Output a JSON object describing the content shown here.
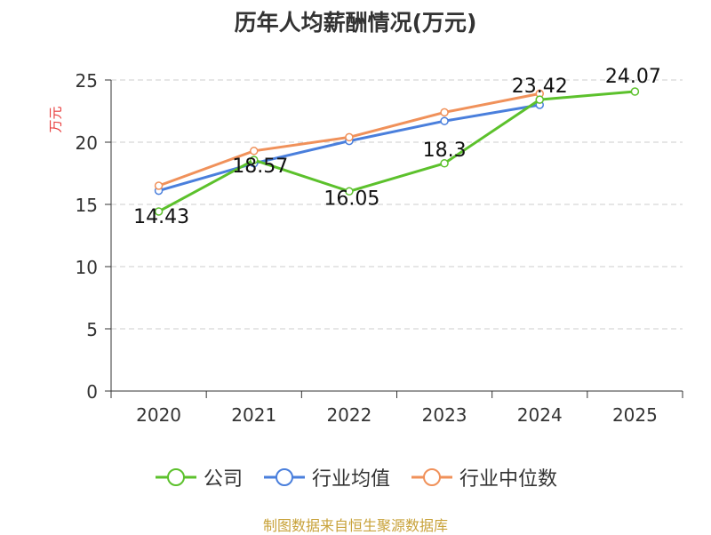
{
  "chart_data": {
    "type": "line",
    "title": "历年人均薪酬情况(万元)",
    "ylabel": "万元",
    "categories": [
      "2020",
      "2021",
      "2022",
      "2023",
      "2024",
      "2025"
    ],
    "ylim": [
      0,
      25
    ],
    "yticks": [
      0,
      5,
      10,
      15,
      20,
      25
    ],
    "grid": true,
    "legend_position": "bottom",
    "series": [
      {
        "name": "公司",
        "color": "#5cc12c",
        "values": [
          14.43,
          18.57,
          16.05,
          18.3,
          23.42,
          24.07
        ],
        "labels": [
          "14.43",
          "18.57",
          "16.05",
          "18.3",
          "23.42",
          "24.07"
        ]
      },
      {
        "name": "行业均值",
        "color": "#4a7fdc",
        "values": [
          16.1,
          18.3,
          20.1,
          21.7,
          23.0,
          null
        ]
      },
      {
        "name": "行业中位数",
        "color": "#f0915a",
        "values": [
          16.5,
          19.3,
          20.4,
          22.4,
          23.9,
          null
        ]
      }
    ]
  },
  "footer": {
    "source": "制图数据来自恒生聚源数据库"
  }
}
